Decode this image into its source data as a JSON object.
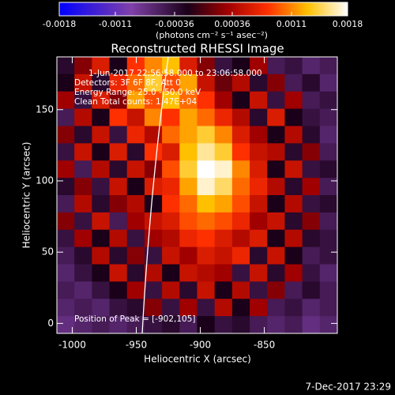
{
  "chart_data": {
    "type": "heatmap",
    "title": "Reconstructed RHESSI Image",
    "xlabel": "Heliocentric X (arcsec)",
    "ylabel": "Heliocentric Y (arcsec)",
    "xlim": [
      -1012,
      -793
    ],
    "ylim": [
      -7,
      187
    ],
    "xticks": [
      -1000,
      -950,
      -900,
      -850
    ],
    "yticks": [
      0,
      50,
      100,
      150
    ],
    "annotations": [
      "1-Jun-2017 22:56:58.000 to 23:06:58.000",
      "Detectors: 3F 6F 8F, Att 0",
      "Energy Range: 25.0 - 50.0 keV",
      "Clean    Total counts: 1.47E+04",
      "Position of Peak = [-902,105]"
    ],
    "footer": "7-Dec-2017 23:29",
    "colorbar": {
      "label": "(photons cm⁻² s⁻¹ asec⁻²)",
      "lim": [
        -0.0018,
        0.0018
      ],
      "ticks": [
        -0.0018,
        -0.0011,
        -0.00036,
        0.00036,
        0.0011,
        0.0018
      ],
      "colorscale": [
        [
          -0.0018,
          "#0000ff"
        ],
        [
          -0.0009,
          "#8040a8"
        ],
        [
          -0.0002,
          "#1a0018"
        ],
        [
          0.0003,
          "#a00000"
        ],
        [
          0.0008,
          "#ff3000"
        ],
        [
          0.0013,
          "#ffc000"
        ],
        [
          0.0018,
          "#ffffff"
        ]
      ]
    },
    "z": [
      [
        -0.0003,
        0.0002,
        0.0006,
        -0.0002,
        0.0008,
        0.0011,
        0.0013,
        0.0006,
        0.0002,
        -0.0004,
        -0.0002,
        0.0003,
        -0.0005,
        -0.0004,
        -0.0006,
        -0.0005
      ],
      [
        -0.0002,
        0.0005,
        -0.0003,
        0.0007,
        0.001,
        0.0014,
        0.0009,
        0.0012,
        0.0005,
        0.0001,
        0.0004,
        -0.0003,
        0.0002,
        -0.0005,
        -0.0003,
        -0.0006
      ],
      [
        0.0003,
        -0.0004,
        0.0006,
        0.0002,
        0.0012,
        0.0009,
        0.0013,
        0.001,
        0.0008,
        0.0003,
        -0.0002,
        0.0005,
        -0.0004,
        0.0003,
        -0.0005,
        -0.0004
      ],
      [
        -0.0005,
        0.0004,
        -0.0002,
        0.0008,
        0.0005,
        0.0011,
        0.0008,
        0.0012,
        0.001,
        0.0007,
        0.0004,
        -0.0003,
        0.0006,
        -0.0002,
        -0.0004,
        -0.0005
      ],
      [
        0.0002,
        -0.0003,
        0.0005,
        -0.0004,
        0.0007,
        0.0004,
        0.001,
        0.0012,
        0.0014,
        0.0011,
        0.0006,
        0.0003,
        -0.0002,
        0.0004,
        -0.0003,
        -0.0006
      ],
      [
        -0.0004,
        0.0005,
        -0.0002,
        0.0006,
        -0.0003,
        0.0008,
        0.0006,
        0.0013,
        0.0016,
        0.0014,
        0.0008,
        0.0005,
        0.0004,
        -0.0003,
        0.0002,
        -0.0005
      ],
      [
        0.0003,
        -0.0005,
        0.0004,
        -0.0003,
        0.0005,
        0.0002,
        0.0009,
        0.0014,
        0.0018,
        0.0017,
        0.0011,
        0.0006,
        -0.0002,
        0.0005,
        -0.0004,
        -0.0003
      ],
      [
        -0.0003,
        0.0002,
        -0.0004,
        0.0005,
        -0.0002,
        0.0006,
        0.0007,
        0.0012,
        0.0017,
        0.0015,
        0.001,
        0.0007,
        0.0004,
        -0.0003,
        0.0003,
        -0.0005
      ],
      [
        -0.0005,
        0.0004,
        -0.0003,
        0.0002,
        0.0004,
        -0.0002,
        0.0008,
        0.001,
        0.0013,
        0.0012,
        0.0009,
        0.0005,
        -0.0002,
        0.0004,
        -0.0004,
        -0.0003
      ],
      [
        0.0002,
        -0.0004,
        0.0005,
        -0.0005,
        0.0003,
        0.0005,
        0.0006,
        0.0009,
        0.001,
        0.0009,
        0.0007,
        0.0003,
        0.0005,
        -0.0003,
        0.0002,
        -0.0005
      ],
      [
        -0.0004,
        0.0003,
        -0.0002,
        0.0004,
        -0.0004,
        0.0003,
        0.0004,
        0.0007,
        0.0008,
        0.0006,
        0.0004,
        0.0006,
        -0.0002,
        0.0004,
        -0.0003,
        -0.0004
      ],
      [
        -0.0005,
        -0.0003,
        0.0004,
        -0.0003,
        0.0002,
        -0.0004,
        0.0005,
        0.0003,
        0.0006,
        0.0005,
        0.0007,
        -0.0003,
        0.0005,
        -0.0002,
        -0.0005,
        -0.0004
      ],
      [
        -0.0006,
        -0.0004,
        -0.0002,
        0.0005,
        -0.0003,
        0.0004,
        -0.0002,
        0.0005,
        0.0004,
        0.0003,
        -0.0004,
        0.0005,
        -0.0003,
        0.0003,
        -0.0004,
        -0.0006
      ],
      [
        -0.0005,
        -0.0006,
        -0.0004,
        -0.0002,
        0.0003,
        -0.0004,
        0.0004,
        -0.0003,
        0.0005,
        -0.0002,
        0.0004,
        -0.0004,
        0.0002,
        -0.0005,
        -0.0003,
        -0.0005
      ],
      [
        -0.0006,
        -0.0005,
        -0.0006,
        -0.0004,
        -0.0003,
        0.0002,
        -0.0004,
        0.0003,
        -0.0004,
        0.0004,
        -0.0002,
        0.0003,
        -0.0005,
        -0.0004,
        -0.0006,
        -0.0005
      ],
      [
        -0.0007,
        -0.0006,
        -0.0005,
        -0.0006,
        -0.0005,
        -0.0004,
        -0.0003,
        -0.0005,
        -0.0002,
        -0.0004,
        -0.0003,
        -0.0005,
        -0.0006,
        -0.0005,
        -0.0007,
        -0.0006
      ]
    ]
  }
}
